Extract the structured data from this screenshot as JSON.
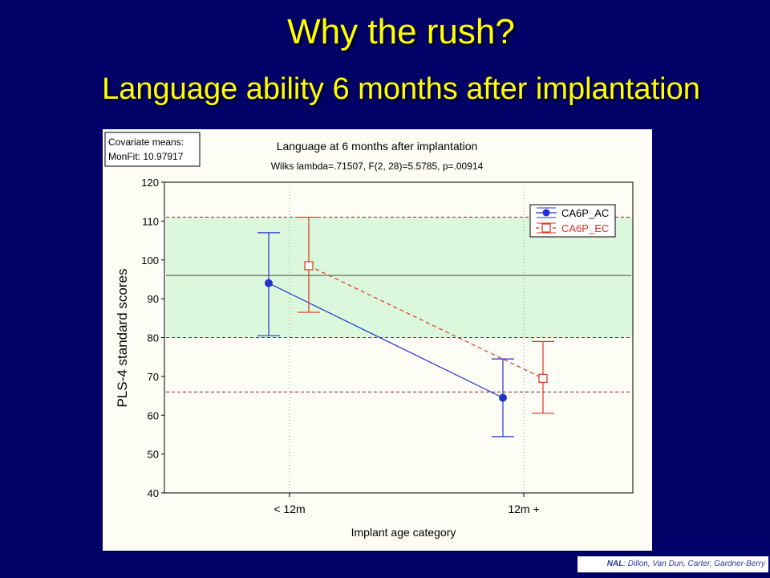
{
  "slide": {
    "title": "Why the rush?",
    "subtitle": "Language ability 6 months after implantation"
  },
  "colors": {
    "background": "#000066",
    "title": "#ffff00",
    "series_ac": "#2233cc",
    "series_ec": "#dd3322",
    "normal_band": "#dcf8dc"
  },
  "covariate_box": {
    "line1": "Covariate means:",
    "line2": "MonFit: 10.97917"
  },
  "credit": {
    "org": "NAL",
    "authors": ": Dillon, Van Dun, Carter, Gardner-Berry"
  },
  "chart_data": {
    "type": "line",
    "title": "Language at 6 months after implantation",
    "subtitle": "Wilks lambda=.71507, F(2, 28)=5.5785, p=.00914",
    "xlabel": "Implant age category",
    "ylabel": "PLS-4 standard scores",
    "categories": [
      "< 12m",
      "12m +"
    ],
    "ylim": [
      40,
      120
    ],
    "yticks": [
      40,
      50,
      60,
      70,
      80,
      90,
      100,
      110,
      120
    ],
    "grid": true,
    "legend_position": "top-right",
    "series": [
      {
        "name": "CA6P_AC",
        "style": "solid",
        "marker": "filled-circle",
        "color": "#2233cc",
        "values": [
          94,
          64.5
        ],
        "ci_low": [
          80.5,
          54.5
        ],
        "ci_high": [
          107,
          74.5
        ]
      },
      {
        "name": "CA6P_EC",
        "style": "dashed",
        "marker": "open-square",
        "color": "#dd3322",
        "values": [
          98.5,
          69.5
        ],
        "ci_low": [
          86.5,
          60.5
        ],
        "ci_high": [
          111,
          79
        ]
      }
    ],
    "reference_band": [
      80,
      111
    ],
    "reference_lines": [
      {
        "value": 111,
        "style": "dashed",
        "color": "#8b1c3c"
      },
      {
        "value": 96,
        "style": "solid",
        "color": "#4a4a4a"
      },
      {
        "value": 80,
        "style": "dashed",
        "color": "#8b1c3c"
      },
      {
        "value": 66,
        "style": "dashed",
        "color": "#8b1c3c"
      }
    ]
  }
}
